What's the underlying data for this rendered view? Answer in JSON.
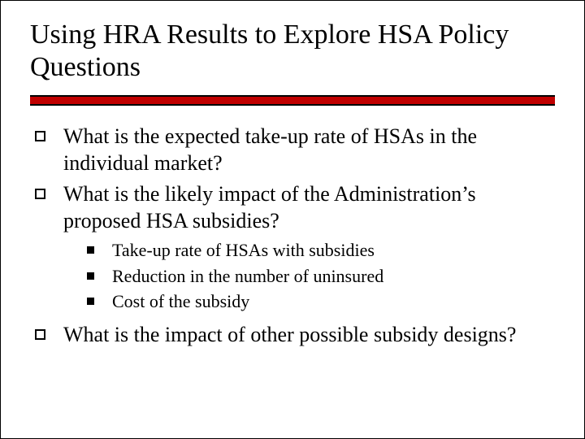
{
  "title": "Using HRA Results to Explore HSA Policy Questions",
  "colors": {
    "accent_bar": "#c00000",
    "rule_line": "#000000",
    "background": "#ffffff",
    "text": "#000000"
  },
  "typography": {
    "title_fontsize": 34,
    "l1_fontsize": 26,
    "l2_fontsize": 22,
    "font_family": "Garamond / serif"
  },
  "bullets": [
    {
      "level": 1,
      "text": "What is the expected take-up rate of HSAs in the individual market?"
    },
    {
      "level": 1,
      "text": "What is the likely impact of the Administration’s proposed HSA subsidies?"
    },
    {
      "level": 2,
      "text": "Take-up rate of HSAs with subsidies"
    },
    {
      "level": 2,
      "text": "Reduction in the number of uninsured"
    },
    {
      "level": 2,
      "text": "Cost of the subsidy"
    },
    {
      "level": 1,
      "text": "What is the impact of other possible subsidy designs?"
    }
  ]
}
